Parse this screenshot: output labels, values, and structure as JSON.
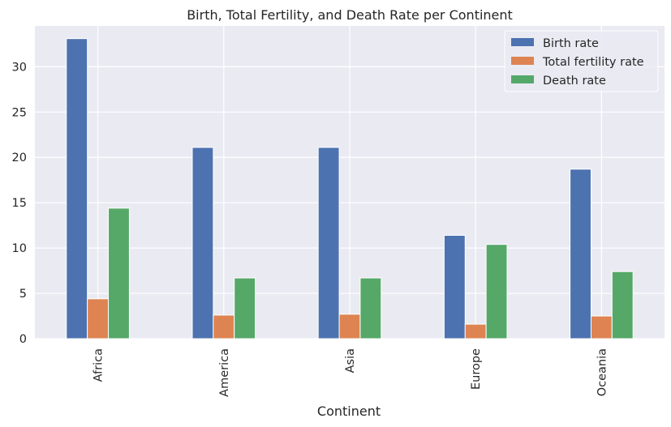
{
  "chart_data": {
    "type": "bar",
    "title": "Birth, Total Fertility, and Death Rate per Continent",
    "xlabel": "Continent",
    "ylabel": "",
    "categories": [
      "Africa",
      "America",
      "Asia",
      "Europe",
      "Oceania"
    ],
    "series": [
      {
        "name": "Birth rate",
        "color": "#4c72b0",
        "values": [
          33.1,
          21.1,
          21.1,
          11.4,
          18.7
        ]
      },
      {
        "name": "Total fertility rate",
        "color": "#dd8452",
        "values": [
          4.4,
          2.6,
          2.7,
          1.6,
          2.5
        ]
      },
      {
        "name": "Death rate",
        "color": "#55a868",
        "values": [
          14.4,
          6.7,
          6.7,
          10.4,
          7.4
        ]
      }
    ],
    "ylim": [
      0,
      34.5
    ],
    "yticks": [
      0,
      5,
      10,
      15,
      20,
      25,
      30
    ],
    "grid": true,
    "legend_position": "top-right",
    "background": "#eaeaf2",
    "grid_color": "#ffffff"
  }
}
